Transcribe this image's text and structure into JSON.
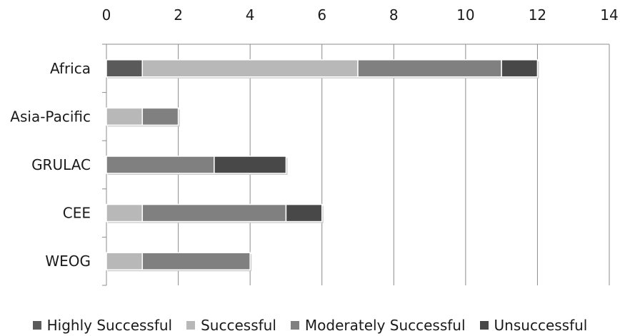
{
  "chart_data": {
    "type": "bar",
    "orientation": "horizontal",
    "stacked": true,
    "title": "",
    "xlabel": "",
    "ylabel": "",
    "xlim": [
      0,
      14
    ],
    "x_ticks": [
      "0",
      "2",
      "4",
      "6",
      "8",
      "10",
      "12",
      "14"
    ],
    "x_axis_position": "top",
    "grid": true,
    "legend_position": "bottom",
    "categories": [
      "Africa",
      "Asia-Pacific",
      "GRULAC",
      "CEE",
      "WEOG"
    ],
    "series": [
      {
        "name": "Highly Successful",
        "color": "#5a5a5a",
        "values": [
          1,
          0,
          0,
          0,
          0
        ]
      },
      {
        "name": "Successful",
        "color": "#b8b8b8",
        "values": [
          6,
          1,
          0,
          1,
          1
        ]
      },
      {
        "name": "Moderately Successful",
        "color": "#808080",
        "values": [
          4,
          1,
          3,
          4,
          3
        ]
      },
      {
        "name": "Unsuccessful",
        "color": "#484848",
        "values": [
          1,
          0,
          2,
          1,
          0
        ]
      }
    ]
  }
}
